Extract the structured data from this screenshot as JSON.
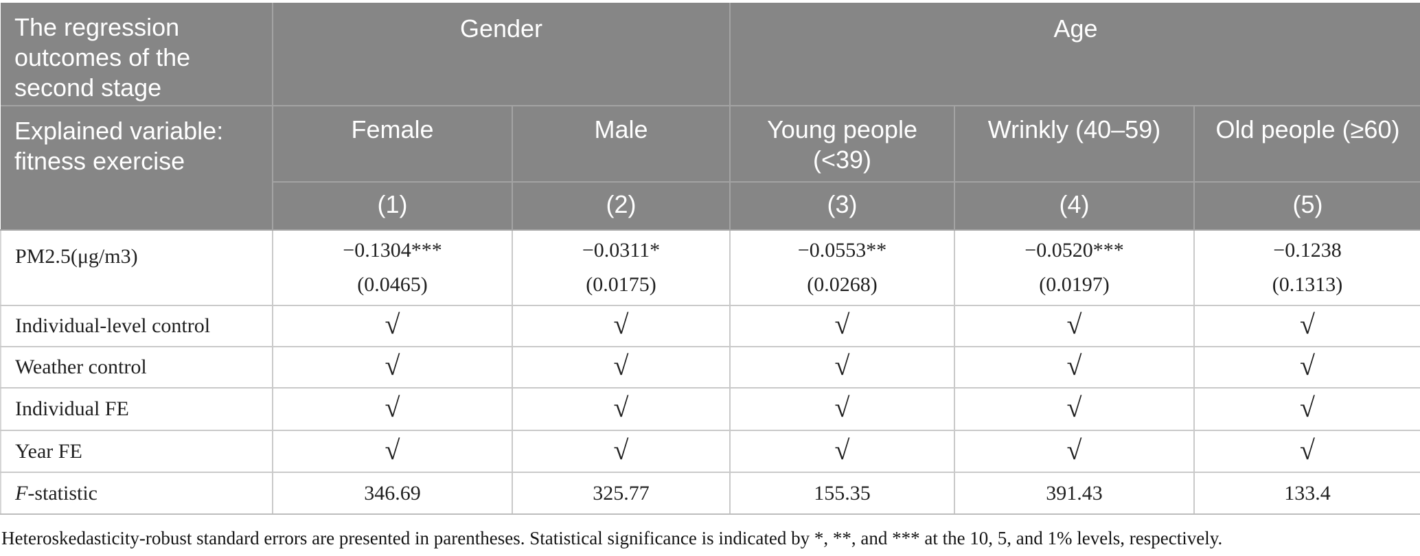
{
  "colors": {
    "header_background": "#868686",
    "header_text": "#ffffff",
    "header_gridline": "#a3a3a3",
    "body_background": "#ffffff",
    "body_gridline": "#c9c9c9",
    "body_text": "#1f1f1f"
  },
  "table": {
    "header": {
      "title": "The regression outcomes of the second stage",
      "group_gender": "Gender",
      "group_age": "Age",
      "explained": "Explained variable: fitness exercise",
      "columns": [
        "Female",
        "Male",
        "Young people (<39)",
        "Wrinkly (40–59)",
        "Old people (≥60)"
      ],
      "model_numbers": [
        "(1)",
        "(2)",
        "(3)",
        "(4)",
        "(5)"
      ]
    },
    "body": {
      "pm_row": {
        "label": "PM2.5(μg/m3)",
        "coefficients": [
          "−0.1304***",
          "−0.0311*",
          "−0.0553**",
          "−0.0520***",
          "−0.1238"
        ],
        "standard_errors": [
          "(0.0465)",
          "(0.0175)",
          "(0.0268)",
          "(0.0197)",
          "(0.1313)"
        ]
      },
      "check_rows": [
        {
          "label": "Individual-level control",
          "values": [
            "√",
            "√",
            "√",
            "√",
            "√"
          ]
        },
        {
          "label": "Weather control",
          "values": [
            "√",
            "√",
            "√",
            "√",
            "√"
          ]
        },
        {
          "label": "Individual FE",
          "values": [
            "√",
            "√",
            "√",
            "√",
            "√"
          ]
        },
        {
          "label": "Year FE",
          "values": [
            "√",
            "√",
            "√",
            "√",
            "√"
          ]
        }
      ],
      "f_row": {
        "label_italic": "F",
        "label_rest": "-statistic",
        "values": [
          "346.69",
          "325.77",
          "155.35",
          "391.43",
          "133.4"
        ]
      }
    },
    "footnote": "Heteroskedasticity-robust standard errors are presented in parentheses. Statistical significance is indicated by *, **, and *** at the 10, 5, and 1% levels, respectively."
  }
}
